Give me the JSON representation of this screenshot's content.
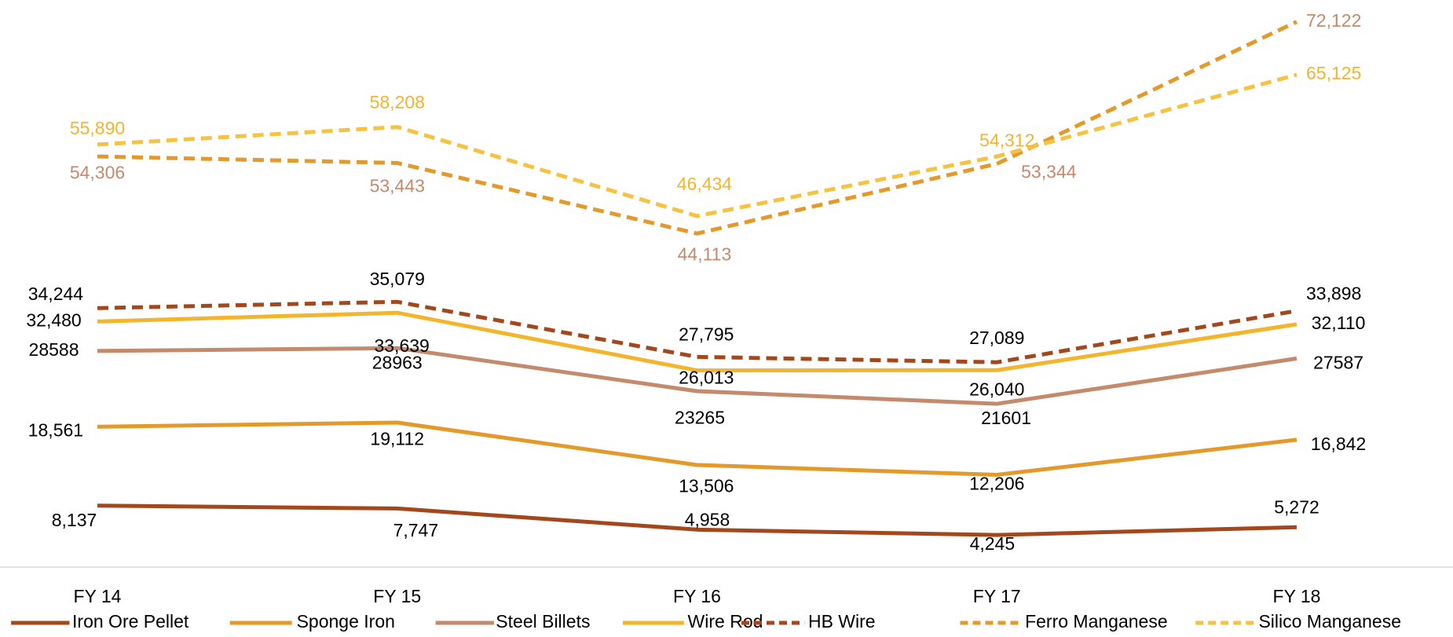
{
  "chart_data": {
    "type": "line",
    "categories": [
      "FY 14",
      "FY 15",
      "FY 16",
      "FY 17",
      "FY 18"
    ],
    "ylim": [
      0,
      75000
    ],
    "series": [
      {
        "name": "Iron Ore Pellet",
        "color": "#a3481c",
        "dash": false,
        "label_color": "#000000",
        "values": [
          8137,
          7747,
          4958,
          4245,
          5272
        ],
        "value_labels": [
          "8,137",
          "7,747",
          "4,958",
          "4,245",
          "5,272"
        ]
      },
      {
        "name": "Sponge Iron",
        "color": "#e39a2b",
        "dash": false,
        "label_color": "#000000",
        "values": [
          18561,
          19112,
          13506,
          12206,
          16842
        ],
        "value_labels": [
          "18,561",
          "19,112",
          "13,506",
          "12,206",
          "16,842"
        ]
      },
      {
        "name": "Steel Billets",
        "color": "#c38a6c",
        "dash": false,
        "label_color": "#000000",
        "values": [
          28588,
          28963,
          23265,
          21601,
          27587
        ]
      },
      {
        "name": "Wire Rod",
        "color": "#f2b52c",
        "dash": false,
        "label_color": "#000000",
        "values": [
          32480,
          33639,
          26013,
          26040,
          32110
        ],
        "value_labels": [
          "32,480",
          "33,639",
          "26,013",
          "26,040",
          "32,110"
        ]
      },
      {
        "name": "HB Wire",
        "color": "#a3481c",
        "dash": true,
        "label_color": "#000000",
        "values": [
          34244,
          35079,
          27795,
          27089,
          33898
        ],
        "value_labels": [
          "34,244",
          "35,079",
          "27,795",
          "27,089",
          "33,898"
        ]
      },
      {
        "name": "Ferro Manganese",
        "color": "#e39a2b",
        "dash": true,
        "label_color": "#c38a6c",
        "values": [
          54306,
          53443,
          44113,
          53344,
          72122
        ],
        "value_labels": [
          "54,306",
          "53,443",
          "44,113",
          "53,344",
          "72,122"
        ]
      },
      {
        "name": "Silico Manganese",
        "color": "#f5c242",
        "dash": true,
        "label_color": "#f2b52c",
        "values": [
          55890,
          58208,
          46434,
          54312,
          65125
        ],
        "value_labels": [
          "55,890",
          "58,208",
          "46,434",
          "54,312",
          "65,125"
        ]
      }
    ]
  }
}
